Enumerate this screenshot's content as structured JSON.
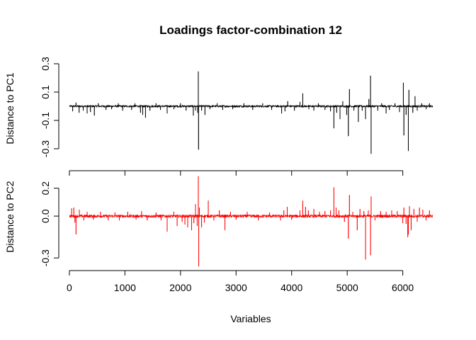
{
  "chart_data": [
    {
      "type": "line",
      "title": "Loadings factor-combination 12",
      "xlabel": "",
      "ylabel": "Distance to PC1",
      "xlim": [
        1,
        6540
      ],
      "ylim": [
        -0.34,
        0.31
      ],
      "yticks": [
        -0.3,
        -0.1,
        0.1,
        0.3
      ],
      "ytick_labels": [
        "-0.3",
        "-0.1",
        "0.1",
        "0.3"
      ],
      "xticks": [
        0,
        1000,
        2000,
        3000,
        4000,
        5000,
        6000
      ],
      "show_xtick_labels": false,
      "color": "#000000",
      "baseline": 0.0,
      "noise": 0.007,
      "spikes": [
        {
          "x": 60,
          "y": -0.035
        },
        {
          "x": 120,
          "y": 0.025
        },
        {
          "x": 175,
          "y": -0.045
        },
        {
          "x": 250,
          "y": -0.03
        },
        {
          "x": 320,
          "y": -0.05
        },
        {
          "x": 380,
          "y": -0.04
        },
        {
          "x": 450,
          "y": -0.065
        },
        {
          "x": 520,
          "y": 0.02
        },
        {
          "x": 660,
          "y": -0.025
        },
        {
          "x": 760,
          "y": -0.02
        },
        {
          "x": 880,
          "y": 0.02
        },
        {
          "x": 960,
          "y": -0.03
        },
        {
          "x": 1120,
          "y": -0.025
        },
        {
          "x": 1180,
          "y": 0.02
        },
        {
          "x": 1280,
          "y": -0.045
        },
        {
          "x": 1320,
          "y": -0.06
        },
        {
          "x": 1370,
          "y": -0.08
        },
        {
          "x": 1450,
          "y": -0.03
        },
        {
          "x": 1560,
          "y": 0.02
        },
        {
          "x": 1640,
          "y": -0.025
        },
        {
          "x": 1760,
          "y": -0.05
        },
        {
          "x": 1880,
          "y": -0.02
        },
        {
          "x": 2000,
          "y": 0.02
        },
        {
          "x": 2100,
          "y": -0.03
        },
        {
          "x": 2230,
          "y": -0.065
        },
        {
          "x": 2270,
          "y": -0.03
        },
        {
          "x": 2310,
          "y": -0.045
        },
        {
          "x": 2320,
          "y": 0.245
        },
        {
          "x": 2325,
          "y": -0.305
        },
        {
          "x": 2380,
          "y": -0.03
        },
        {
          "x": 2440,
          "y": -0.06
        },
        {
          "x": 2530,
          "y": -0.02
        },
        {
          "x": 2660,
          "y": 0.02
        },
        {
          "x": 2760,
          "y": -0.025
        },
        {
          "x": 2940,
          "y": -0.02
        },
        {
          "x": 3140,
          "y": 0.02
        },
        {
          "x": 3300,
          "y": -0.025
        },
        {
          "x": 3480,
          "y": 0.02
        },
        {
          "x": 3640,
          "y": -0.025
        },
        {
          "x": 3820,
          "y": -0.05
        },
        {
          "x": 3880,
          "y": -0.035
        },
        {
          "x": 3930,
          "y": 0.035
        },
        {
          "x": 4050,
          "y": -0.03
        },
        {
          "x": 4150,
          "y": 0.03
        },
        {
          "x": 4200,
          "y": 0.09
        },
        {
          "x": 4310,
          "y": -0.02
        },
        {
          "x": 4400,
          "y": -0.03
        },
        {
          "x": 4480,
          "y": 0.02
        },
        {
          "x": 4600,
          "y": -0.025
        },
        {
          "x": 4700,
          "y": -0.035
        },
        {
          "x": 4760,
          "y": -0.155
        },
        {
          "x": 4810,
          "y": -0.045
        },
        {
          "x": 4870,
          "y": -0.09
        },
        {
          "x": 4920,
          "y": 0.035
        },
        {
          "x": 4990,
          "y": -0.06
        },
        {
          "x": 5020,
          "y": -0.21
        },
        {
          "x": 5040,
          "y": 0.12
        },
        {
          "x": 5120,
          "y": -0.03
        },
        {
          "x": 5200,
          "y": -0.11
        },
        {
          "x": 5270,
          "y": -0.03
        },
        {
          "x": 5330,
          "y": -0.09
        },
        {
          "x": 5390,
          "y": 0.05
        },
        {
          "x": 5420,
          "y": 0.215
        },
        {
          "x": 5430,
          "y": -0.335
        },
        {
          "x": 5550,
          "y": -0.03
        },
        {
          "x": 5620,
          "y": 0.02
        },
        {
          "x": 5700,
          "y": -0.05
        },
        {
          "x": 5760,
          "y": -0.025
        },
        {
          "x": 5860,
          "y": 0.02
        },
        {
          "x": 5940,
          "y": -0.04
        },
        {
          "x": 6010,
          "y": 0.165
        },
        {
          "x": 6020,
          "y": -0.205
        },
        {
          "x": 6060,
          "y": -0.06
        },
        {
          "x": 6100,
          "y": -0.315
        },
        {
          "x": 6110,
          "y": 0.115
        },
        {
          "x": 6180,
          "y": -0.045
        },
        {
          "x": 6220,
          "y": 0.07
        },
        {
          "x": 6260,
          "y": -0.03
        },
        {
          "x": 6340,
          "y": 0.02
        },
        {
          "x": 6420,
          "y": -0.02
        },
        {
          "x": 6480,
          "y": 0.02
        }
      ]
    },
    {
      "type": "line",
      "title": "",
      "xlabel": "Variables",
      "ylabel": "Distance to PC2",
      "xlim": [
        1,
        6540
      ],
      "ylim": [
        -0.36,
        0.3
      ],
      "yticks": [
        -0.3,
        0.0,
        0.2
      ],
      "ytick_labels": [
        "-0.3",
        "0.0",
        "0.2"
      ],
      "xticks": [
        0,
        1000,
        2000,
        3000,
        4000,
        5000,
        6000
      ],
      "xtick_labels": [
        "0",
        "1000",
        "2000",
        "3000",
        "4000",
        "5000",
        "6000"
      ],
      "show_xtick_labels": true,
      "color": "#ff0000",
      "baseline": 0.0,
      "noise": 0.01,
      "spikes": [
        {
          "x": 40,
          "y": 0.055
        },
        {
          "x": 80,
          "y": 0.06
        },
        {
          "x": 100,
          "y": -0.045
        },
        {
          "x": 120,
          "y": -0.13
        },
        {
          "x": 180,
          "y": 0.045
        },
        {
          "x": 260,
          "y": -0.03
        },
        {
          "x": 320,
          "y": 0.03
        },
        {
          "x": 430,
          "y": -0.025
        },
        {
          "x": 560,
          "y": 0.03
        },
        {
          "x": 700,
          "y": -0.03
        },
        {
          "x": 820,
          "y": 0.025
        },
        {
          "x": 900,
          "y": -0.03
        },
        {
          "x": 1050,
          "y": 0.03
        },
        {
          "x": 1200,
          "y": -0.025
        },
        {
          "x": 1300,
          "y": 0.035
        },
        {
          "x": 1400,
          "y": -0.03
        },
        {
          "x": 1560,
          "y": 0.025
        },
        {
          "x": 1650,
          "y": -0.03
        },
        {
          "x": 1760,
          "y": -0.11
        },
        {
          "x": 1880,
          "y": 0.03
        },
        {
          "x": 1940,
          "y": -0.07
        },
        {
          "x": 2030,
          "y": -0.04
        },
        {
          "x": 2080,
          "y": -0.06
        },
        {
          "x": 2130,
          "y": -0.08
        },
        {
          "x": 2200,
          "y": -0.1
        },
        {
          "x": 2240,
          "y": -0.05
        },
        {
          "x": 2270,
          "y": 0.085
        },
        {
          "x": 2300,
          "y": -0.07
        },
        {
          "x": 2320,
          "y": 0.285
        },
        {
          "x": 2328,
          "y": -0.36
        },
        {
          "x": 2340,
          "y": 0.06
        },
        {
          "x": 2380,
          "y": -0.08
        },
        {
          "x": 2430,
          "y": -0.045
        },
        {
          "x": 2500,
          "y": 0.11
        },
        {
          "x": 2600,
          "y": -0.03
        },
        {
          "x": 2700,
          "y": 0.04
        },
        {
          "x": 2800,
          "y": -0.1
        },
        {
          "x": 2900,
          "y": 0.03
        },
        {
          "x": 3000,
          "y": -0.025
        },
        {
          "x": 3200,
          "y": 0.03
        },
        {
          "x": 3400,
          "y": -0.03
        },
        {
          "x": 3600,
          "y": 0.025
        },
        {
          "x": 3800,
          "y": -0.03
        },
        {
          "x": 3860,
          "y": 0.04
        },
        {
          "x": 3920,
          "y": 0.065
        },
        {
          "x": 4000,
          "y": -0.025
        },
        {
          "x": 4150,
          "y": 0.04
        },
        {
          "x": 4200,
          "y": 0.11
        },
        {
          "x": 4250,
          "y": 0.065
        },
        {
          "x": 4300,
          "y": 0.04
        },
        {
          "x": 4400,
          "y": 0.05
        },
        {
          "x": 4500,
          "y": 0.03
        },
        {
          "x": 4600,
          "y": 0.035
        },
        {
          "x": 4700,
          "y": 0.04
        },
        {
          "x": 4760,
          "y": 0.205
        },
        {
          "x": 4800,
          "y": 0.06
        },
        {
          "x": 4850,
          "y": 0.04
        },
        {
          "x": 4950,
          "y": -0.04
        },
        {
          "x": 5020,
          "y": -0.16
        },
        {
          "x": 5040,
          "y": 0.15
        },
        {
          "x": 5100,
          "y": 0.03
        },
        {
          "x": 5180,
          "y": -0.1
        },
        {
          "x": 5230,
          "y": 0.05
        },
        {
          "x": 5300,
          "y": 0.035
        },
        {
          "x": 5330,
          "y": -0.31
        },
        {
          "x": 5380,
          "y": 0.04
        },
        {
          "x": 5420,
          "y": -0.28
        },
        {
          "x": 5430,
          "y": 0.14
        },
        {
          "x": 5500,
          "y": -0.03
        },
        {
          "x": 5600,
          "y": 0.035
        },
        {
          "x": 5700,
          "y": 0.03
        },
        {
          "x": 5800,
          "y": 0.04
        },
        {
          "x": 5900,
          "y": 0.035
        },
        {
          "x": 6000,
          "y": -0.05
        },
        {
          "x": 6020,
          "y": 0.06
        },
        {
          "x": 6060,
          "y": -0.055
        },
        {
          "x": 6090,
          "y": -0.15
        },
        {
          "x": 6100,
          "y": -0.13
        },
        {
          "x": 6120,
          "y": 0.07
        },
        {
          "x": 6150,
          "y": -0.1
        },
        {
          "x": 6200,
          "y": 0.05
        },
        {
          "x": 6260,
          "y": -0.04
        },
        {
          "x": 6300,
          "y": 0.06
        },
        {
          "x": 6360,
          "y": 0.045
        },
        {
          "x": 6420,
          "y": -0.03
        },
        {
          "x": 6480,
          "y": 0.04
        }
      ]
    }
  ]
}
